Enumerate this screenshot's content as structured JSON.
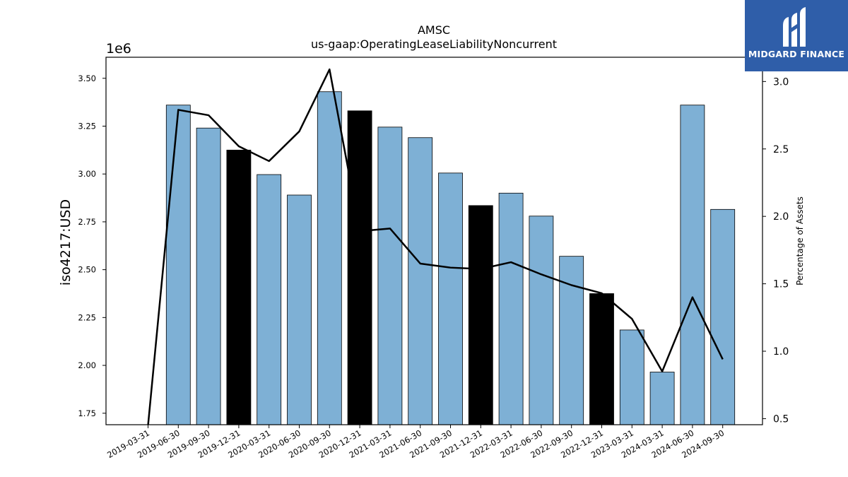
{
  "chart_data": {
    "type": "bar",
    "title": "AMSC",
    "subtitle": "us-gaap:OperatingLeaseLiabilityNoncurrent",
    "ylabel": "iso4217:USD",
    "y2label": "Percentage of Assets",
    "y_offset_label": "1e6",
    "categories": [
      "2019-03-31",
      "2019-06-30",
      "2019-09-30",
      "2019-12-31",
      "2020-03-31",
      "2020-06-30",
      "2020-09-30",
      "2020-12-31",
      "2021-03-31",
      "2021-06-30",
      "2021-09-30",
      "2021-12-31",
      "2022-03-31",
      "2022-06-30",
      "2022-09-30",
      "2022-12-31",
      "2023-03-31",
      "2024-03-31",
      "2024-06-30",
      "2024-09-30"
    ],
    "series": [
      {
        "kind": "bar",
        "values": [
          null,
          3360000,
          3240000,
          3125000,
          2997000,
          2890000,
          3430000,
          3330000,
          3245000,
          3190000,
          3005000,
          2835000,
          2900000,
          2780000,
          2570000,
          2375000,
          2185000,
          1965000,
          3360000,
          2815000
        ],
        "highlight": [
          false,
          false,
          false,
          true,
          false,
          false,
          false,
          true,
          false,
          false,
          false,
          true,
          false,
          false,
          false,
          true,
          false,
          false,
          false,
          false
        ]
      },
      {
        "kind": "line",
        "axis": "right",
        "values": [
          0.45,
          2.79,
          2.75,
          2.52,
          2.41,
          2.63,
          3.09,
          1.89,
          1.91,
          1.65,
          1.62,
          1.61,
          1.66,
          1.57,
          1.49,
          1.43,
          1.24,
          0.85,
          1.4,
          0.94
        ]
      }
    ],
    "ylim": [
      1690000,
      3610000
    ],
    "y2lim": [
      0.455,
      3.18
    ],
    "yticks": [
      "1.75",
      "2.00",
      "2.25",
      "2.50",
      "2.75",
      "3.00",
      "3.25",
      "3.50"
    ],
    "y2ticks": [
      "0.5",
      "1.0",
      "1.5",
      "2.0",
      "2.5",
      "3.0"
    ],
    "bar_color": "#7eb0d5",
    "highlight_color": "#000000",
    "line_color": "#000000",
    "grid": false
  },
  "logo": {
    "text": "MIDGARD FINANCE",
    "background": "#2f5ea9"
  }
}
